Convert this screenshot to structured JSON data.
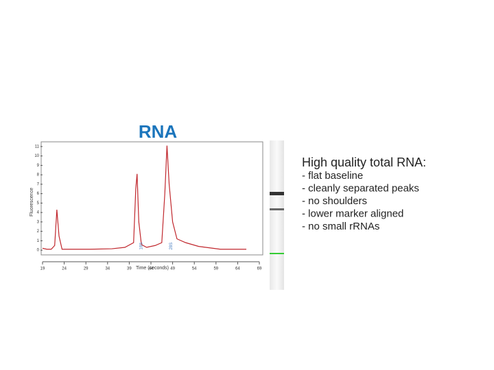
{
  "slide": {
    "title": "RNA",
    "notes": {
      "heading": "High quality total RNA:",
      "items": [
        "- flat baseline",
        "- cleanly separated peaks",
        "- no shoulders",
        "- lower marker aligned",
        "- no small rRNAs"
      ]
    }
  },
  "chart_data": {
    "type": "line",
    "x_label": "Time (seconds)",
    "y_label": "Fluorescence",
    "xlim": [
      19,
      69
    ],
    "ylim": [
      -0.5,
      11.5
    ],
    "xticks": [
      19,
      24,
      29,
      34,
      39,
      44,
      49,
      54,
      59,
      64,
      69
    ],
    "yticks": [
      0,
      1,
      2,
      3,
      4,
      5,
      6,
      7,
      8,
      9,
      10,
      11
    ],
    "grid": false,
    "series": [
      {
        "color": "#c0262c",
        "x": [
          19,
          20,
          21,
          21.8,
          22.3,
          22.8,
          23.5,
          25,
          30,
          35,
          38,
          40,
          40.5,
          40.8,
          41.2,
          41.8,
          43,
          45,
          46.5,
          47.2,
          47.7,
          48.2,
          49,
          50,
          52,
          55,
          60,
          66
        ],
        "values": [
          0.2,
          0.1,
          0.1,
          0.5,
          4.3,
          1.5,
          0.1,
          0.1,
          0.1,
          0.15,
          0.3,
          0.8,
          6.5,
          8.1,
          3,
          0.6,
          0.3,
          0.5,
          0.8,
          6,
          11.1,
          7,
          3,
          1.2,
          0.8,
          0.4,
          0.1,
          0.1
        ]
      }
    ],
    "annotations": [
      {
        "text": "18S",
        "x": 40.8
      },
      {
        "text": "28S",
        "x": 47.7
      }
    ]
  }
}
